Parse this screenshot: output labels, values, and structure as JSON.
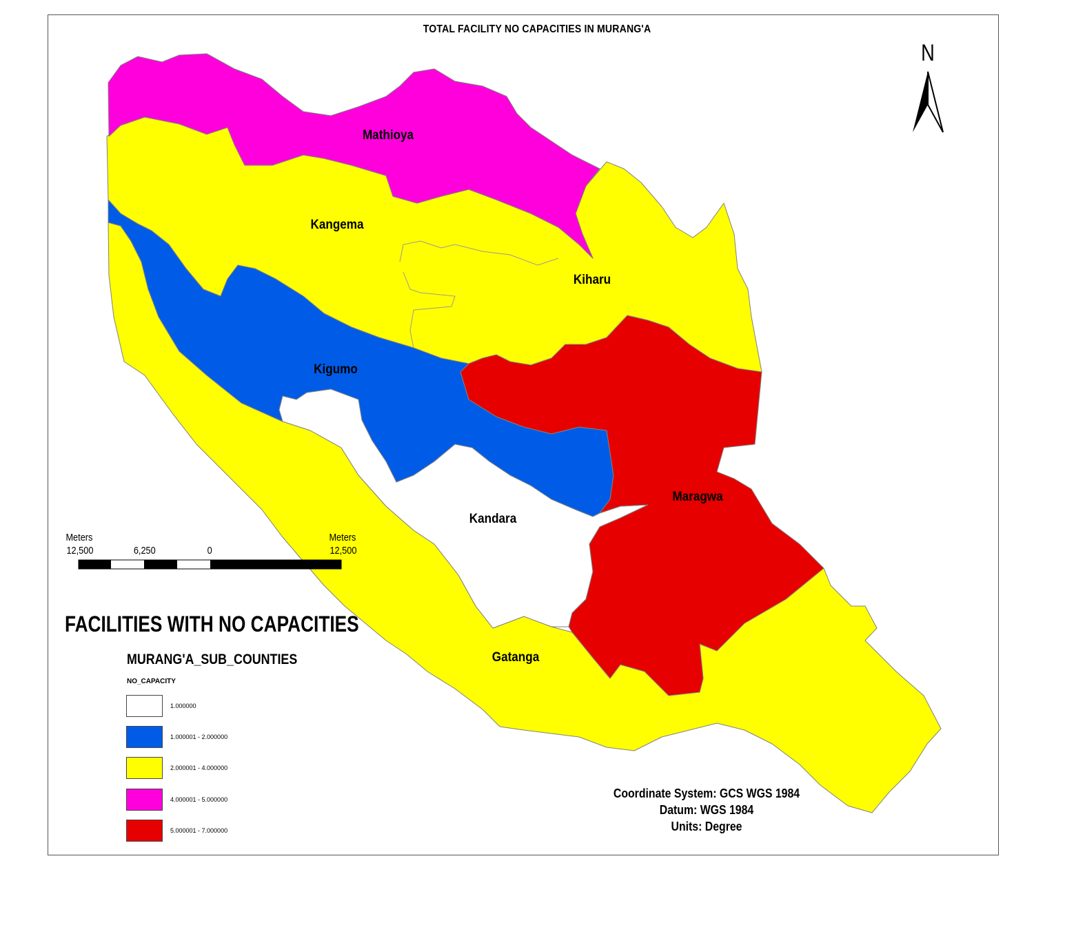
{
  "map": {
    "title": "TOTAL FACILITY NO CAPACITIES  IN MURANG'A",
    "north_label": "N",
    "colors": {
      "class_1": "#ffffff",
      "class_2": "#005ce6",
      "class_3": "#ffff00",
      "class_4": "#ff00dc",
      "class_5": "#e60000",
      "outline": "#808080"
    },
    "regions": [
      {
        "name": "Mathioya",
        "class": "4.000001 - 5.000000"
      },
      {
        "name": "Kangema",
        "class": "2.000001 - 4.000000"
      },
      {
        "name": "Kiharu",
        "class": "2.000001 - 4.000000"
      },
      {
        "name": "Kigumo",
        "class": "1.000001 - 2.000000"
      },
      {
        "name": "Maragwa",
        "class": "5.000001 - 7.000000"
      },
      {
        "name": "Kandara",
        "class": "1.000000"
      },
      {
        "name": "Gatanga",
        "class": "2.000001 - 4.000000"
      }
    ]
  },
  "scale": {
    "left_unit": "Meters",
    "right_unit": "Meters",
    "ticks": [
      "12,500",
      "6,250",
      "0",
      "12,500"
    ]
  },
  "legend": {
    "heading": "FACILITIES WITH NO CAPACITIES",
    "layer_name": "MURANG'A_SUB_COUNTIES",
    "field_name": "NO_CAPACITY",
    "items": [
      {
        "label": "1.000000",
        "color": "#ffffff"
      },
      {
        "label": "1.000001 - 2.000000",
        "color": "#005ce6"
      },
      {
        "label": "2.000001 - 4.000000",
        "color": "#ffff00"
      },
      {
        "label": "4.000001 - 5.000000",
        "color": "#ff00dc"
      },
      {
        "label": "5.000001 - 7.000000",
        "color": "#e60000"
      }
    ]
  },
  "coordinate_info": {
    "system": "Coordinate System: GCS WGS 1984",
    "datum": "Datum: WGS 1984",
    "units": "Units: Degree"
  }
}
